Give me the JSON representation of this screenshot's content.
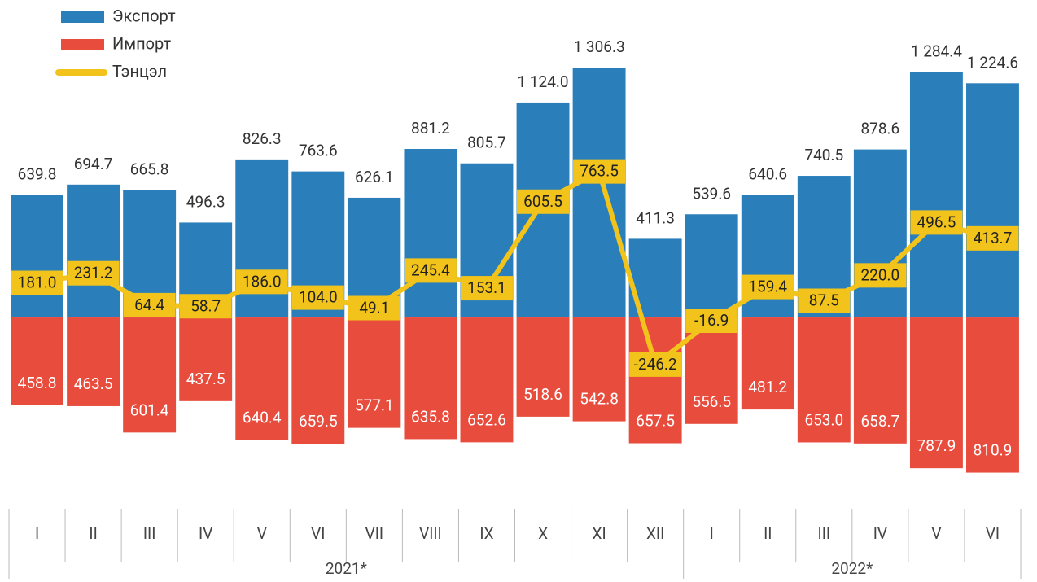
{
  "chart_data": {
    "type": "bar",
    "groups": [
      {
        "name": "2021*",
        "categories": [
          "I",
          "II",
          "III",
          "IV",
          "V",
          "VI",
          "VII",
          "VIII",
          "IX",
          "X",
          "XI",
          "XII"
        ]
      },
      {
        "name": "2022*",
        "categories": [
          "I",
          "II",
          "III",
          "IV",
          "V",
          "VI"
        ]
      }
    ],
    "series": [
      {
        "name": "Экспорт",
        "color": "#2a7fbb",
        "type": "bar",
        "values": [
          639.8,
          694.7,
          665.8,
          496.3,
          826.3,
          763.6,
          626.1,
          881.2,
          805.7,
          1124.0,
          1306.3,
          411.3,
          539.6,
          640.6,
          740.5,
          878.6,
          1284.4,
          1224.6
        ],
        "value_labels": [
          "639.8",
          "694.7",
          "665.8",
          "496.3",
          "826.3",
          "763.6",
          "626.1",
          "881.2",
          "805.7",
          "1 124.0",
          "1 306.3",
          "411.3",
          "539.6",
          "640.6",
          "740.5",
          "878.6",
          "1 284.4",
          "1 224.6"
        ]
      },
      {
        "name": "Импорт",
        "color": "#e84c3d",
        "type": "bar",
        "values": [
          -458.8,
          -463.5,
          -601.4,
          -437.5,
          -640.4,
          -659.5,
          -577.1,
          -635.8,
          -652.6,
          -518.6,
          -542.8,
          -657.5,
          -556.5,
          -481.2,
          -653.0,
          -658.7,
          -787.9,
          -810.9
        ],
        "value_labels": [
          "458.8",
          "463.5",
          "601.4",
          "437.5",
          "640.4",
          "659.5",
          "577.1",
          "635.8",
          "652.6",
          "518.6",
          "542.8",
          "657.5",
          "556.5",
          "481.2",
          "653.0",
          "658.7",
          "787.9",
          "810.9"
        ]
      },
      {
        "name": "Тэнцэл",
        "color": "#f2c31b",
        "type": "line",
        "values": [
          181.0,
          231.2,
          64.4,
          58.7,
          186.0,
          104.0,
          49.1,
          245.4,
          153.1,
          605.5,
          763.5,
          -246.2,
          -16.9,
          159.4,
          87.5,
          220.0,
          496.5,
          413.7
        ],
        "value_labels": [
          "181.0",
          "231.2",
          "64.4",
          "58.7",
          "186.0",
          "104.0",
          "49.1",
          "245.4",
          "153.1",
          "605.5",
          "763.5",
          "-246.2",
          "-16.9",
          "159.4",
          "87.5",
          "220.0",
          "496.5",
          "413.7"
        ]
      }
    ],
    "ylim": [
      -1000,
      1660
    ]
  }
}
